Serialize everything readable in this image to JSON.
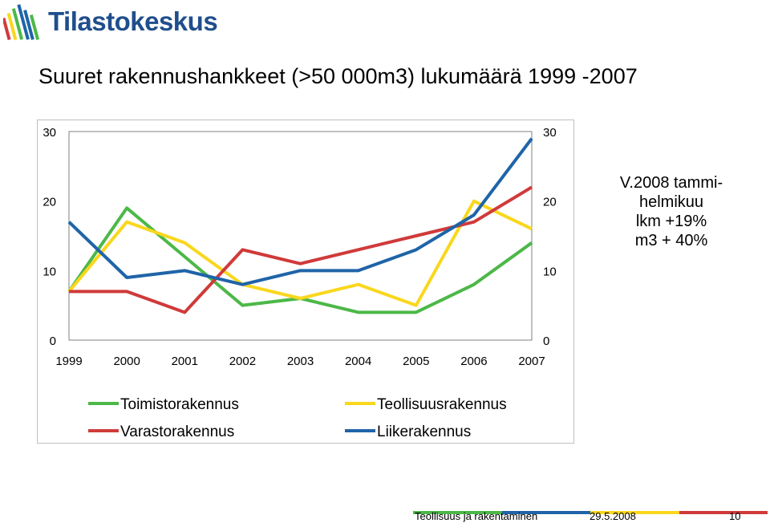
{
  "brand": {
    "name": "Tilastokeskus"
  },
  "title": "Suuret rakennushankkeet (>50 000m3) lukumäärä 1999 -2007",
  "note": [
    "V.2008 tammi-",
    "helmikuu",
    "lkm +19%",
    "m3 + 40%"
  ],
  "chart_data": {
    "type": "line",
    "categories": [
      "1999",
      "2000",
      "2001",
      "2002",
      "2003",
      "2004",
      "2005",
      "2006",
      "2007"
    ],
    "ylim": [
      0,
      30
    ],
    "yticks_left": [
      "0",
      "10",
      "20",
      "30"
    ],
    "yticks_right": [
      "0",
      "10",
      "20",
      "30"
    ],
    "grid": false,
    "legend_position": "bottom",
    "series": [
      {
        "name": "Toimistorakennus",
        "color": "#4cb848",
        "values": [
          7,
          19,
          12,
          5,
          6,
          4,
          4,
          8,
          14
        ]
      },
      {
        "name": "Teollisuusrakennus",
        "color": "#f9d71c",
        "values": [
          7,
          17,
          14,
          8,
          6,
          8,
          5,
          20,
          16
        ]
      },
      {
        "name": "Varastorakennus",
        "color": "#d03a3a",
        "values": [
          7,
          7,
          4,
          13,
          11,
          13,
          15,
          17,
          22
        ]
      },
      {
        "name": "Liikerakennus",
        "color": "#1f64a8",
        "values": [
          17,
          9,
          10,
          8,
          10,
          10,
          13,
          18,
          29
        ]
      }
    ]
  },
  "footer": {
    "text": "Teollisuus ja rakentaminen",
    "date": "29.5.2008",
    "page": "10",
    "bar_colors": [
      "#4cb848",
      "#1f64a8",
      "#f9d71c",
      "#d03a3a"
    ]
  }
}
